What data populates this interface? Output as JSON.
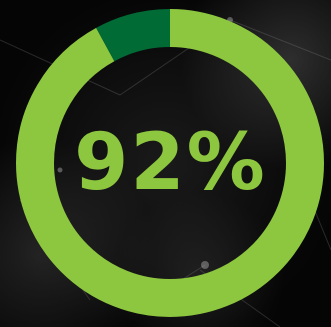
{
  "chart_data": {
    "type": "pie",
    "variant": "donut",
    "values": [
      92,
      8
    ],
    "value_label": "92%",
    "colors": {
      "filled": "#8dc63f",
      "remaining": "#006b35",
      "label": "#8dc63f",
      "background": "#000000"
    }
  }
}
